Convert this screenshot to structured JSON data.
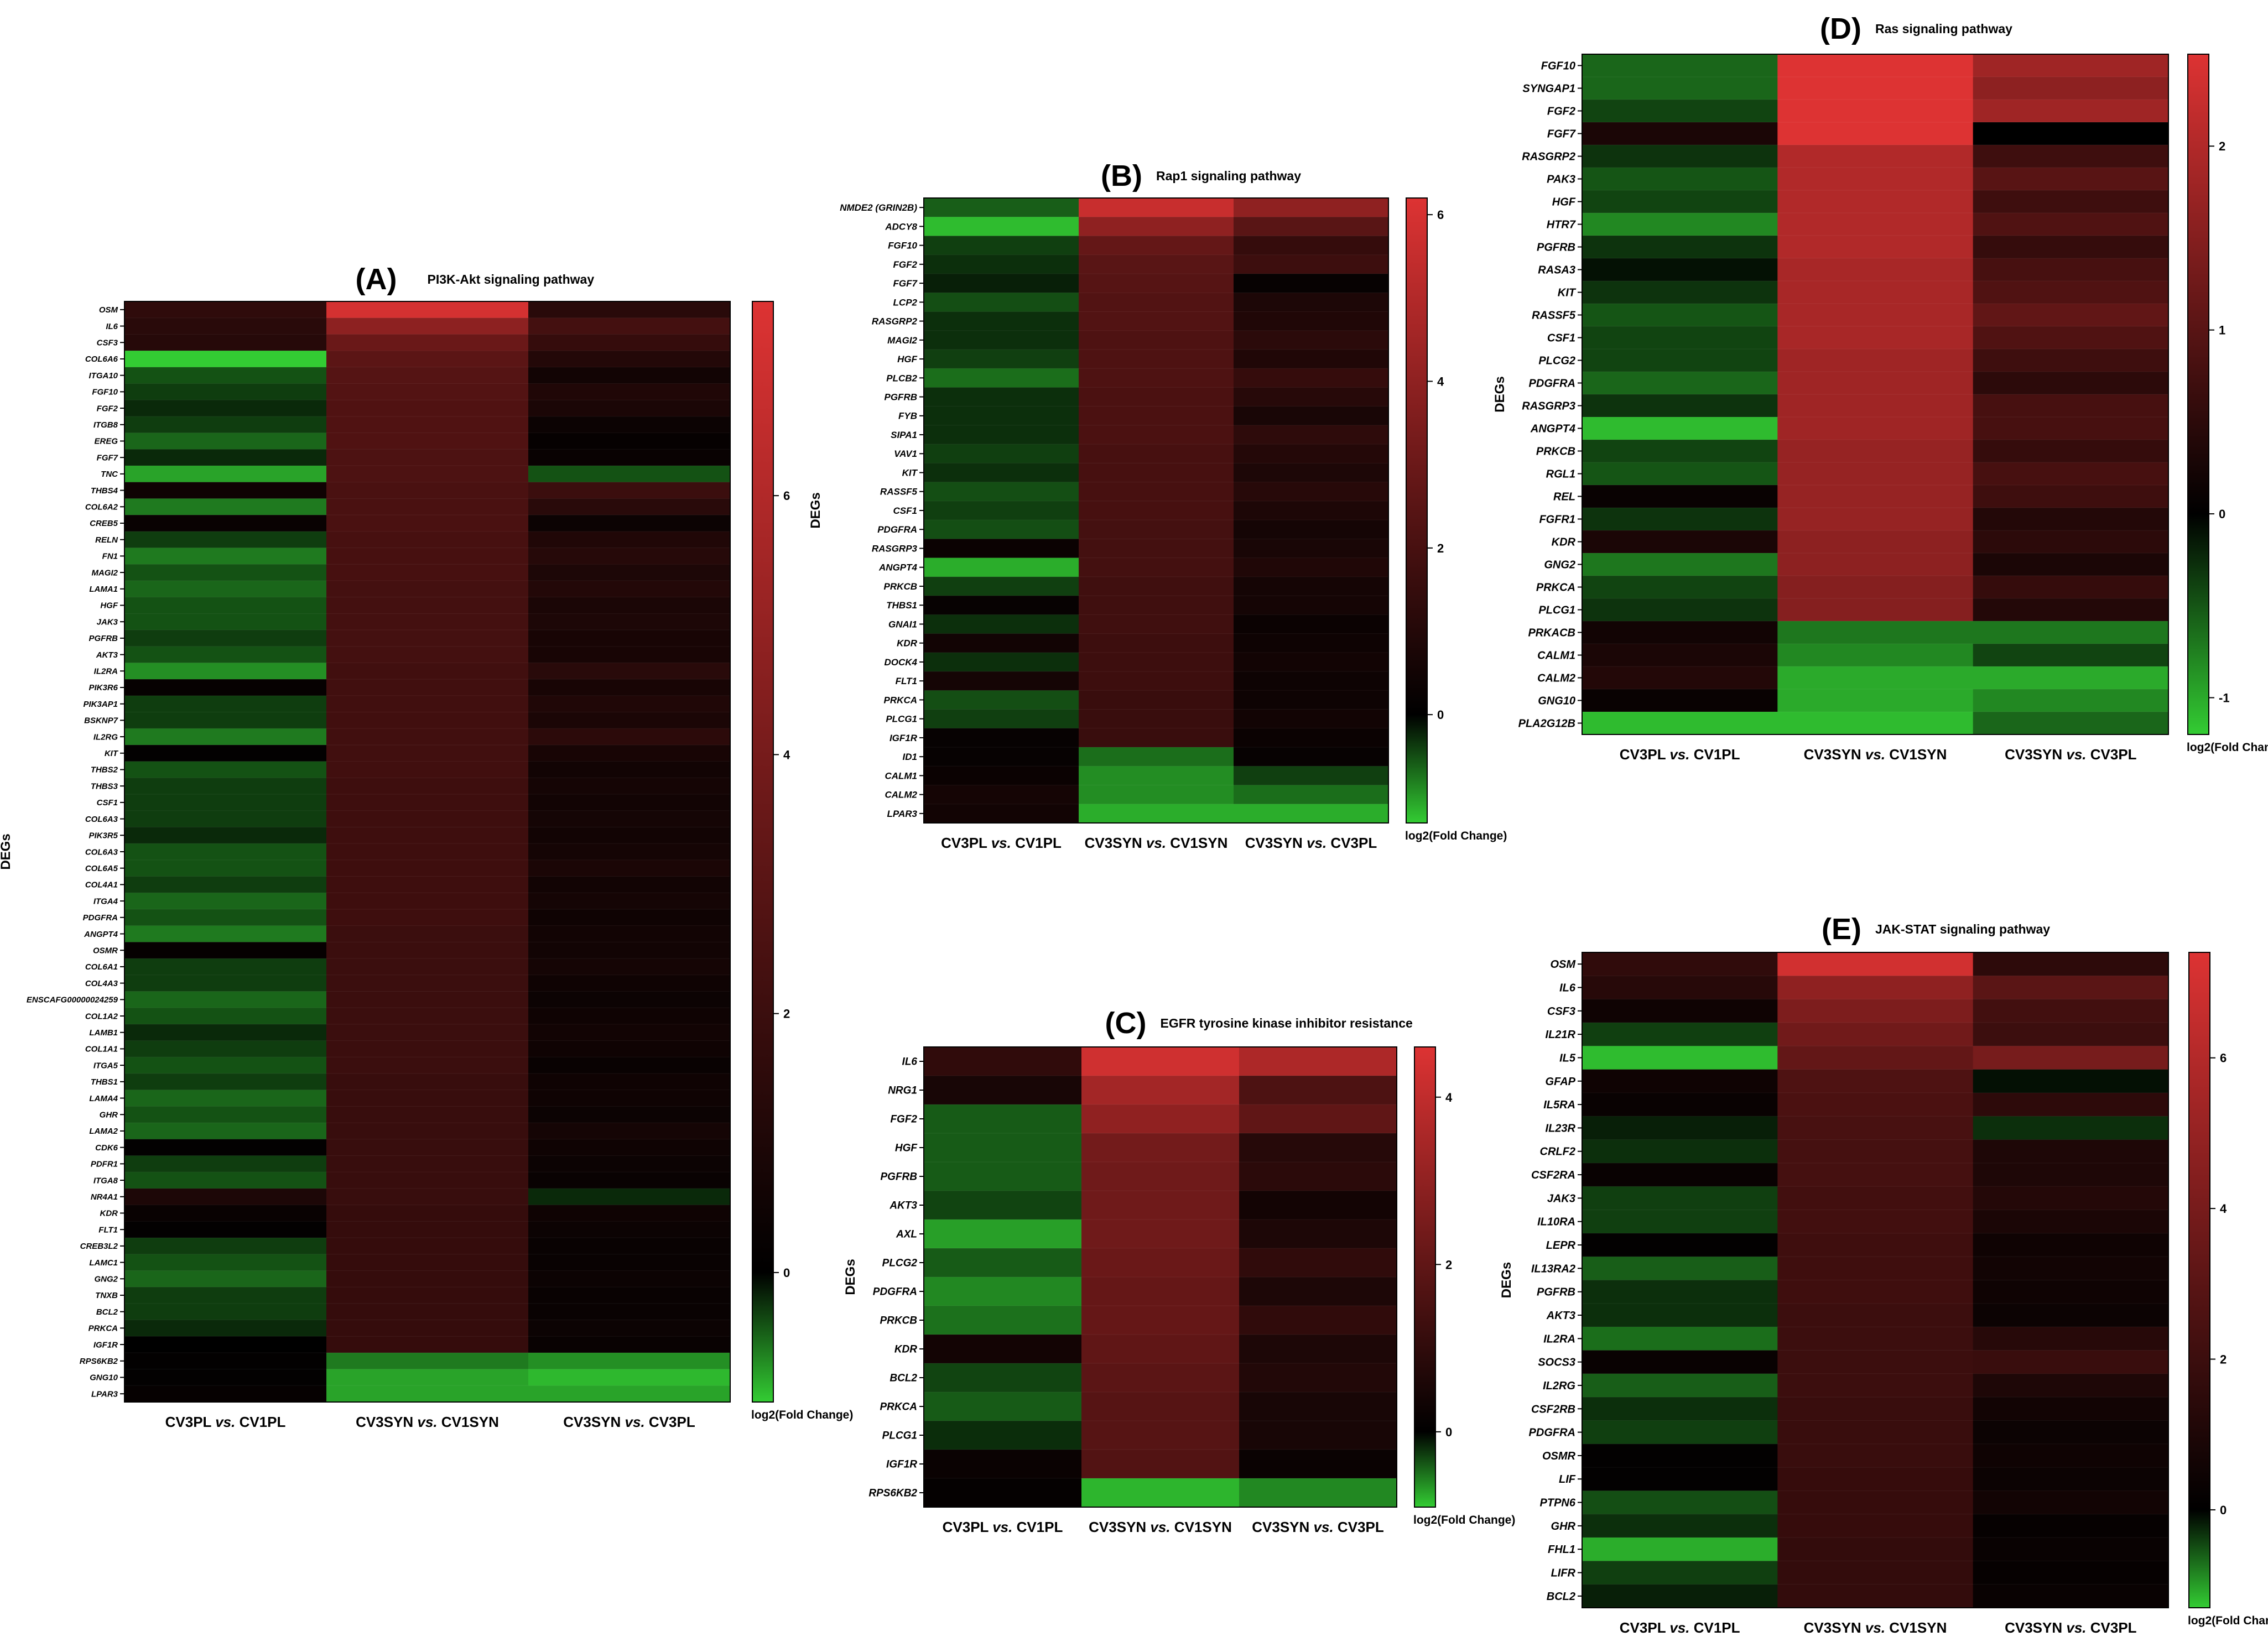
{
  "figure": {
    "common": {
      "ylabel": "DEGs",
      "colorbar_label": "log2(Fold Change)",
      "color_low": "#33cc33",
      "color_mid": "#000000",
      "color_high": "#dd3333"
    }
  },
  "chart_data": [
    {
      "type": "heatmap",
      "panel": "(A)",
      "title": "PI3K-Akt signaling pathway",
      "xlabel_parts": [
        [
          "CV3PL ",
          "vs.",
          " CV1PL"
        ],
        [
          "CV3SYN ",
          "vs.",
          " CV1SYN"
        ],
        [
          "CV3SYN ",
          "vs.",
          " CV3PL"
        ]
      ],
      "ylabel": "DEGs",
      "colorbar_label": "log2(Fold Change)",
      "colorbar_ticks": [
        0,
        2,
        4,
        6
      ],
      "vmin": -1,
      "vmax": 7.5,
      "rows": [
        "OSM",
        "IL6",
        "CSF3",
        "COL6A6",
        "ITGA10",
        "FGF10",
        "FGF2",
        "ITGB8",
        "EREG",
        "FGF7",
        "TNC",
        "THBS4",
        "COL6A2",
        "CREB5",
        "RELN",
        "FN1",
        "MAGI2",
        "LAMA1",
        "HGF",
        "JAK3",
        "PGFRB",
        "AKT3",
        "IL2RA",
        "PIK3R6",
        "PIK3AP1",
        "BSKNP7",
        "IL2RG",
        "KIT",
        "THBS2",
        "THBS3",
        "CSF1",
        "COL6A3",
        "PIK3R5",
        "COL6A3",
        "COL6A5",
        "COL4A1",
        "ITGA4",
        "PDGFRA",
        "ANGPT4",
        "OSMR",
        "COL6A1",
        "COL4A3",
        "ENSCAFG00000024259",
        "COL1A2",
        "LAMB1",
        "COL1A1",
        "ITGA5",
        "THBS1",
        "LAMA4",
        "GHR",
        "LAMA2",
        "CDK6",
        "PDFR1",
        "ITGA8",
        "NR4A1",
        "KDR",
        "FLT1",
        "CREB3L2",
        "LAMC1",
        "GNG2",
        "TNXB",
        "BCL2",
        "PRKCA",
        "IGF1R",
        "RPS6KB2",
        "GNG10",
        "LPAR3"
      ],
      "values": [
        [
          1.6,
          7.2,
          1.4
        ],
        [
          1.4,
          4.8,
          2.3
        ],
        [
          1.3,
          3.6,
          1.8
        ],
        [
          -1.0,
          3.1,
          1.2
        ],
        [
          -0.4,
          2.9,
          0.6
        ],
        [
          -0.3,
          2.8,
          1.1
        ],
        [
          -0.2,
          2.7,
          0.9
        ],
        [
          -0.3,
          2.7,
          0.4
        ],
        [
          -0.5,
          2.7,
          0.2
        ],
        [
          -0.2,
          2.6,
          0.3
        ],
        [
          -0.8,
          2.6,
          -0.4
        ],
        [
          0.5,
          2.5,
          2.0
        ],
        [
          -0.6,
          2.5,
          1.4
        ],
        [
          0.3,
          2.5,
          0.4
        ],
        [
          -0.3,
          2.4,
          1.1
        ],
        [
          -0.6,
          2.4,
          1.3
        ],
        [
          -0.4,
          2.4,
          1.0
        ],
        [
          -0.5,
          2.3,
          1.2
        ],
        [
          -0.4,
          2.3,
          0.9
        ],
        [
          -0.4,
          2.3,
          1.0
        ],
        [
          -0.3,
          2.3,
          0.8
        ],
        [
          -0.4,
          2.3,
          0.8
        ],
        [
          -0.7,
          2.2,
          1.4
        ],
        [
          0.2,
          2.2,
          0.8
        ],
        [
          -0.3,
          2.2,
          1.1
        ],
        [
          -0.3,
          2.2,
          0.9
        ],
        [
          -0.6,
          2.2,
          1.5
        ],
        [
          0.1,
          2.2,
          0.8
        ],
        [
          -0.4,
          2.2,
          0.6
        ],
        [
          -0.3,
          2.1,
          0.7
        ],
        [
          -0.3,
          2.1,
          0.6
        ],
        [
          -0.3,
          2.1,
          0.7
        ],
        [
          -0.2,
          2.1,
          0.6
        ],
        [
          -0.4,
          2.1,
          0.7
        ],
        [
          -0.4,
          2.1,
          0.9
        ],
        [
          -0.3,
          2.1,
          0.6
        ],
        [
          -0.5,
          2.1,
          0.7
        ],
        [
          -0.4,
          2.1,
          0.5
        ],
        [
          -0.6,
          2.0,
          0.6
        ],
        [
          0.2,
          2.0,
          0.6
        ],
        [
          -0.3,
          2.0,
          0.7
        ],
        [
          -0.3,
          2.0,
          0.5
        ],
        [
          -0.5,
          2.0,
          0.4
        ],
        [
          -0.4,
          2.0,
          0.5
        ],
        [
          -0.2,
          2.0,
          0.6
        ],
        [
          -0.3,
          2.0,
          0.5
        ],
        [
          -0.4,
          2.0,
          0.3
        ],
        [
          -0.3,
          1.9,
          0.5
        ],
        [
          -0.5,
          1.9,
          0.5
        ],
        [
          -0.4,
          1.9,
          0.4
        ],
        [
          -0.5,
          1.9,
          0.7
        ],
        [
          0.1,
          1.9,
          0.5
        ],
        [
          -0.3,
          1.9,
          0.4
        ],
        [
          -0.4,
          1.9,
          0.3
        ],
        [
          1.0,
          1.9,
          -0.2
        ],
        [
          0.3,
          1.8,
          0.5
        ],
        [
          0.1,
          1.8,
          0.4
        ],
        [
          -0.3,
          1.8,
          0.3
        ],
        [
          -0.4,
          1.8,
          0.3
        ],
        [
          -0.5,
          1.8,
          0.4
        ],
        [
          -0.3,
          1.8,
          0.3
        ],
        [
          -0.3,
          1.8,
          0.3
        ],
        [
          -0.2,
          1.8,
          0.4
        ],
        [
          0.0,
          1.8,
          0.3
        ],
        [
          0.1,
          -0.6,
          -0.7
        ],
        [
          0.1,
          -0.8,
          -0.9
        ],
        [
          0.2,
          -0.8,
          -0.8
        ]
      ]
    },
    {
      "type": "heatmap",
      "panel": "(B)",
      "title": "Rap1 signaling pathway",
      "xlabel_parts": [
        [
          "CV3PL ",
          "vs.",
          " CV1PL"
        ],
        [
          "CV3SYN ",
          "vs.",
          " CV1SYN"
        ],
        [
          "CV3SYN ",
          "vs.",
          " CV3PL"
        ]
      ],
      "ylabel": "DEGs",
      "colorbar_label": "log2(Fold Change)",
      "colorbar_ticks": [
        0,
        2,
        4,
        6
      ],
      "vmin": -1.3,
      "vmax": 6.2,
      "rows": [
        "NMDE2 (GRIN2B)",
        "ADCY8",
        "FGF10",
        "FGF2",
        "FGF7",
        "LCP2",
        "RASGRP2",
        "MAGI2",
        "HGF",
        "PLCB2",
        "PGFRB",
        "FYB",
        "SIPA1",
        "VAV1",
        "KIT",
        "RASSF5",
        "CSF1",
        "PDGFRA",
        "RASGRP3",
        "ANGPT4",
        "PRKCB",
        "THBS1",
        "GNAI1",
        "KDR",
        "DOCK4",
        "FLT1",
        "PRKCA",
        "PLCG1",
        "IGF1R",
        "ID1",
        "CALM1",
        "CALM2",
        "LPAR3"
      ],
      "values": [
        [
          -0.6,
          5.6,
          4.0
        ],
        [
          -1.2,
          4.0,
          2.5
        ],
        [
          -0.4,
          2.8,
          1.5
        ],
        [
          -0.3,
          2.5,
          1.7
        ],
        [
          -0.2,
          2.4,
          0.2
        ],
        [
          -0.5,
          2.3,
          0.8
        ],
        [
          -0.3,
          2.3,
          0.9
        ],
        [
          -0.3,
          2.2,
          1.2
        ],
        [
          -0.4,
          2.2,
          0.9
        ],
        [
          -0.7,
          2.2,
          1.5
        ],
        [
          -0.3,
          2.1,
          1.1
        ],
        [
          -0.3,
          2.1,
          0.7
        ],
        [
          -0.3,
          2.1,
          1.3
        ],
        [
          -0.4,
          2.0,
          1.0
        ],
        [
          -0.3,
          2.0,
          0.8
        ],
        [
          -0.5,
          2.0,
          1.1
        ],
        [
          -0.4,
          2.0,
          0.8
        ],
        [
          -0.5,
          1.9,
          0.6
        ],
        [
          0.3,
          1.9,
          0.7
        ],
        [
          -1.1,
          1.9,
          0.9
        ],
        [
          -0.4,
          1.8,
          0.6
        ],
        [
          0.2,
          1.8,
          0.6
        ],
        [
          -0.3,
          1.8,
          0.3
        ],
        [
          0.5,
          1.7,
          0.4
        ],
        [
          -0.3,
          1.7,
          0.5
        ],
        [
          0.6,
          1.7,
          0.4
        ],
        [
          -0.5,
          1.6,
          0.4
        ],
        [
          -0.4,
          1.6,
          0.5
        ],
        [
          0.2,
          1.6,
          0.3
        ],
        [
          0.2,
          -0.7,
          0.2
        ],
        [
          0.3,
          -0.9,
          -0.4
        ],
        [
          0.6,
          -0.9,
          -0.7
        ],
        [
          0.5,
          -1.1,
          -1.1
        ]
      ]
    },
    {
      "type": "heatmap",
      "panel": "(C)",
      "title": "EGFR tyrosine kinase inhibitor resistance",
      "xlabel_parts": [
        [
          "CV3PL ",
          "vs.",
          " CV1PL"
        ],
        [
          "CV3SYN ",
          "vs.",
          " CV1SYN"
        ],
        [
          "CV3SYN ",
          "vs.",
          " CV3PL"
        ]
      ],
      "ylabel": "DEGs",
      "colorbar_label": "log2(Fold Change)",
      "colorbar_ticks": [
        0,
        2,
        4
      ],
      "vmin": -0.9,
      "vmax": 4.6,
      "rows": [
        "IL6",
        "NRG1",
        "FGF2",
        "HGF",
        "PGFRB",
        "AKT3",
        "AXL",
        "PLCG2",
        "PDGFRA",
        "PRKCB",
        "KDR",
        "BCL2",
        "PRKCA",
        "PLCG1",
        "IGF1R",
        "RPS6KB2"
      ],
      "values": [
        [
          1.0,
          4.3,
          3.6
        ],
        [
          0.5,
          3.4,
          1.6
        ],
        [
          -0.4,
          3.0,
          2.0
        ],
        [
          -0.4,
          2.4,
          0.8
        ],
        [
          -0.4,
          2.3,
          0.9
        ],
        [
          -0.3,
          2.3,
          0.4
        ],
        [
          -0.7,
          2.3,
          0.6
        ],
        [
          -0.4,
          2.2,
          1.0
        ],
        [
          -0.6,
          2.1,
          0.6
        ],
        [
          -0.5,
          2.1,
          1.0
        ],
        [
          0.4,
          2.0,
          0.6
        ],
        [
          -0.3,
          1.9,
          0.7
        ],
        [
          -0.4,
          1.8,
          0.5
        ],
        [
          -0.2,
          1.8,
          0.5
        ],
        [
          0.2,
          1.7,
          0.2
        ],
        [
          0.1,
          -0.8,
          -0.6
        ]
      ]
    },
    {
      "type": "heatmap",
      "panel": "(D)",
      "title": "Ras signaling pathway",
      "xlabel_parts": [
        [
          "CV3PL ",
          "vs.",
          " CV1PL"
        ],
        [
          "CV3SYN ",
          "vs.",
          " CV1SYN"
        ],
        [
          "CV3SYN ",
          "vs.",
          " CV3PL"
        ]
      ],
      "ylabel": "DEGs",
      "colorbar_label": "log2(Fold Change)",
      "colorbar_ticks": [
        -1,
        0,
        1,
        2
      ],
      "vmin": -1.2,
      "vmax": 2.5,
      "rows": [
        "FGF10",
        "SYNGAP1",
        "FGF2",
        "FGF7",
        "RASGRP2",
        "PAK3",
        "HGF",
        "HTR7",
        "PGFRB",
        "RASA3",
        "KIT",
        "RASSF5",
        "CSF1",
        "PLCG2",
        "PDGFRA",
        "RASGRP3",
        "ANGPT4",
        "PRKCB",
        "RGL1",
        "REL",
        "FGFR1",
        "KDR",
        "GNG2",
        "PRKCA",
        "PLCG1",
        "PRKACB",
        "CALM1",
        "CALM2",
        "GNG10",
        "PLA2G12B"
      ],
      "values": [
        [
          -0.6,
          2.5,
          1.8
        ],
        [
          -0.6,
          2.5,
          1.6
        ],
        [
          -0.4,
          2.5,
          1.8
        ],
        [
          0.3,
          2.5,
          0.0
        ],
        [
          -0.3,
          2.0,
          0.7
        ],
        [
          -0.5,
          2.0,
          1.0
        ],
        [
          -0.4,
          2.0,
          0.7
        ],
        [
          -0.8,
          2.0,
          0.9
        ],
        [
          -0.3,
          2.0,
          0.6
        ],
        [
          -0.1,
          1.9,
          0.8
        ],
        [
          -0.3,
          1.9,
          0.9
        ],
        [
          -0.5,
          1.9,
          1.1
        ],
        [
          -0.4,
          1.9,
          0.9
        ],
        [
          -0.4,
          1.8,
          0.7
        ],
        [
          -0.6,
          1.8,
          0.5
        ],
        [
          -0.3,
          1.8,
          0.8
        ],
        [
          -1.1,
          1.8,
          0.8
        ],
        [
          -0.4,
          1.7,
          0.6
        ],
        [
          -0.5,
          1.7,
          0.8
        ],
        [
          0.1,
          1.7,
          0.7
        ],
        [
          -0.3,
          1.7,
          0.4
        ],
        [
          0.3,
          1.6,
          0.5
        ],
        [
          -0.7,
          1.6,
          0.3
        ],
        [
          -0.4,
          1.5,
          0.6
        ],
        [
          -0.3,
          1.5,
          0.4
        ],
        [
          0.2,
          -0.7,
          -0.7
        ],
        [
          0.3,
          -0.8,
          -0.4
        ],
        [
          0.4,
          -1.0,
          -1.0
        ],
        [
          0.1,
          -1.0,
          -0.8
        ],
        [
          -1.1,
          -1.1,
          -0.6
        ]
      ]
    },
    {
      "type": "heatmap",
      "panel": "(E)",
      "title": "JAK-STAT signaling pathway",
      "xlabel_parts": [
        [
          "CV3PL ",
          "vs.",
          " CV1PL"
        ],
        [
          "CV3SYN ",
          "vs.",
          " CV1SYN"
        ],
        [
          "CV3SYN ",
          "vs.",
          " CV3PL"
        ]
      ],
      "ylabel": "DEGs",
      "colorbar_label": "log2(Fold Change)",
      "colorbar_ticks": [
        0,
        2,
        4,
        6
      ],
      "vmin": -1.3,
      "vmax": 7.4,
      "rows": [
        "OSM",
        "IL6",
        "CSF3",
        "IL21R",
        "IL5",
        "GFAP",
        "IL5RA",
        "IL23R",
        "CRLF2",
        "CSF2RA",
        "JAK3",
        "IL10RA",
        "LEPR",
        "IL13RA2",
        "PGFRB",
        "AKT3",
        "IL2RA",
        "SOCS3",
        "IL2RG",
        "CSF2RB",
        "PDGFRA",
        "OSMR",
        "LIF",
        "PTPN6",
        "GHR",
        "FHL1",
        "LIFR",
        "BCL2"
      ],
      "values": [
        [
          1.6,
          7.0,
          1.5
        ],
        [
          1.3,
          4.8,
          3.0
        ],
        [
          0.5,
          4.2,
          2.2
        ],
        [
          -0.4,
          3.8,
          2.0
        ],
        [
          -1.2,
          3.3,
          4.0
        ],
        [
          0.5,
          2.6,
          -0.1
        ],
        [
          0.3,
          2.5,
          1.5
        ],
        [
          -0.2,
          2.4,
          -0.3
        ],
        [
          -0.3,
          2.3,
          1.0
        ],
        [
          0.3,
          2.3,
          1.0
        ],
        [
          -0.4,
          2.2,
          1.2
        ],
        [
          -0.4,
          2.2,
          0.9
        ],
        [
          0.1,
          2.1,
          0.5
        ],
        [
          -0.6,
          2.1,
          0.6
        ],
        [
          -0.3,
          2.1,
          0.5
        ],
        [
          -0.3,
          2.0,
          0.4
        ],
        [
          -0.7,
          2.0,
          1.3
        ],
        [
          0.3,
          2.0,
          1.9
        ],
        [
          -0.6,
          2.0,
          1.0
        ],
        [
          -0.3,
          1.9,
          0.6
        ],
        [
          -0.4,
          1.9,
          0.4
        ],
        [
          0.1,
          1.9,
          0.5
        ],
        [
          0.1,
          1.8,
          0.4
        ],
        [
          -0.5,
          1.8,
          0.6
        ],
        [
          -0.3,
          1.8,
          0.2
        ],
        [
          -1.1,
          1.7,
          0.3
        ],
        [
          -0.4,
          1.7,
          0.2
        ],
        [
          -0.2,
          1.7,
          0.3
        ]
      ]
    }
  ]
}
